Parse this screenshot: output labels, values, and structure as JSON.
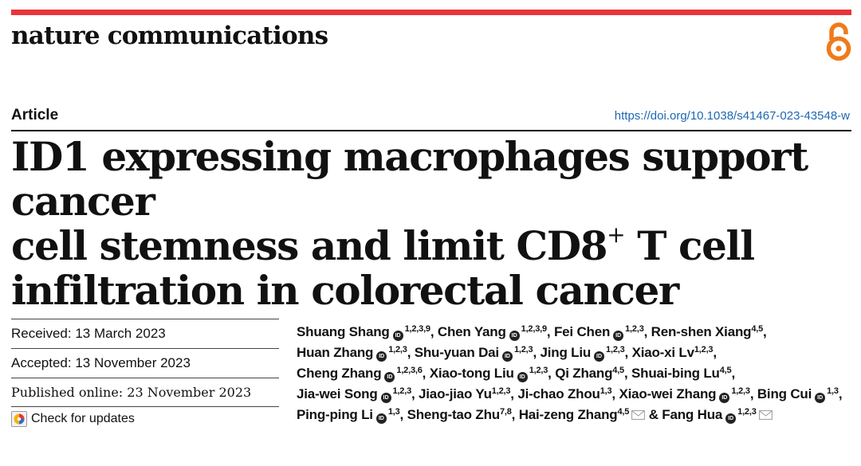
{
  "journal": "nature communications",
  "article_type": "Article",
  "doi": "https://doi.org/10.1038/s41467-023-43548-w",
  "title": {
    "line1": "ID1 expressing macrophages support cancer",
    "line2_before": "cell stemness and limit CD8",
    "line2_sup": "+",
    "line2_after": " T cell",
    "line3": "infiltration in colorectal cancer"
  },
  "dates": {
    "received": "Received: 13 March 2023",
    "accepted": "Accepted: 13 November 2023",
    "published": "Published online: 23 November 2023"
  },
  "check_updates": "Check for updates",
  "orcid_badge": "ID",
  "authors": [
    {
      "name": "Shuang Shang",
      "aff": "1,2,3,9",
      "orcid": true,
      "sep": ", "
    },
    {
      "name": "Chen Yang",
      "aff": "1,2,3,9",
      "orcid": true,
      "sep": ", "
    },
    {
      "name": "Fei Chen",
      "aff": "1,2,3",
      "orcid": true,
      "sep": ", "
    },
    {
      "name": "Ren-shen Xiang",
      "aff": "4,5",
      "orcid": false,
      "sep": ", "
    },
    {
      "name": "Huan Zhang",
      "aff": "1,2,3",
      "orcid": true,
      "sep": ", "
    },
    {
      "name": "Shu-yuan Dai",
      "aff": "1,2,3",
      "orcid": true,
      "sep": ", "
    },
    {
      "name": "Jing Liu",
      "aff": "1,2,3",
      "orcid": true,
      "sep": ", "
    },
    {
      "name": "Xiao-xi Lv",
      "aff": "1,2,3",
      "orcid": false,
      "sep": ", "
    },
    {
      "name": "Cheng Zhang",
      "aff": "1,2,3,6",
      "orcid": true,
      "sep": ", "
    },
    {
      "name": "Xiao-tong Liu",
      "aff": "1,2,3",
      "orcid": true,
      "sep": ", "
    },
    {
      "name": "Qi Zhang",
      "aff": "4,5",
      "orcid": false,
      "sep": ", "
    },
    {
      "name": "Shuai-bing Lu",
      "aff": "4,5",
      "orcid": false,
      "sep": ", "
    },
    {
      "name": "Jia-wei Song",
      "aff": "1,2,3",
      "orcid": true,
      "sep": ", "
    },
    {
      "name": "Jiao-jiao Yu",
      "aff": "1,2,3",
      "orcid": false,
      "sep": ", "
    },
    {
      "name": "Ji-chao Zhou",
      "aff": "1,3",
      "orcid": false,
      "sep": ", "
    },
    {
      "name": "Xiao-wei Zhang",
      "aff": "1,2,3",
      "orcid": true,
      "sep": ", "
    },
    {
      "name": "Bing Cui",
      "aff": "1,3",
      "orcid": true,
      "sep": ", "
    },
    {
      "name": "Ping-ping Li",
      "aff": "1,3",
      "orcid": true,
      "sep": ", "
    },
    {
      "name": "Sheng-tao Zhu",
      "aff": "7,8",
      "orcid": false,
      "sep": ", "
    },
    {
      "name": "Hai-zeng Zhang",
      "aff": "4,5",
      "orcid": false,
      "mail": true,
      "sep": " & "
    },
    {
      "name": "Fang Hua",
      "aff": "1,2,3",
      "orcid": true,
      "mail": true,
      "sep": ""
    }
  ],
  "colors": {
    "accent_bar": "#e8343a",
    "open_access": "#f07a1a",
    "link": "#1d67b3"
  },
  "icons": {
    "open_access": "open-access-icon",
    "orcid": "orcid-icon",
    "mail": "mail-icon",
    "updates": "check-updates-icon"
  }
}
